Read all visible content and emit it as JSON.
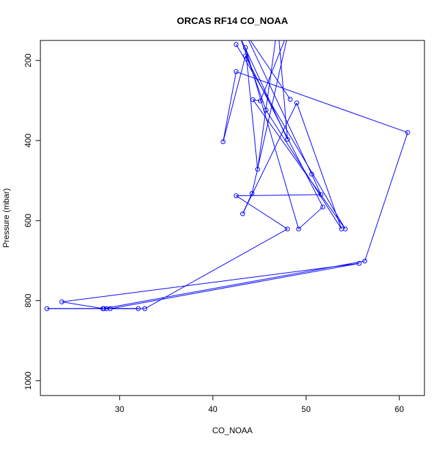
{
  "chart_data": {
    "type": "line",
    "title": "ORCAS RF14 CO_NOAA",
    "xlabel": "CO_NOAA",
    "ylabel": "Pressure (mbar)",
    "xlim": [
      21.5,
      62.7
    ],
    "ylim": [
      1037,
      150
    ],
    "y_reversed": true,
    "x_ticks": [
      30,
      40,
      50,
      60
    ],
    "y_ticks": [
      200,
      400,
      600,
      800,
      1000
    ],
    "grid": false,
    "legend": "none",
    "series": [
      {
        "marker": "open-circle",
        "color": "#0000FF",
        "x": [
          48.3,
          43.4,
          50.6,
          51.6,
          42.5,
          48.0,
          32.7,
          28.6,
          29.0,
          55.7,
          23.8,
          28.3,
          32.0,
          22.2,
          28.2,
          56.3,
          60.9,
          42.5,
          41.1,
          43.5,
          51.8,
          49.2,
          43.5,
          44.8,
          46.9,
          42.7,
          48.0,
          47.0,
          42.6,
          45.7,
          53.8,
          49.0,
          43.2,
          44.2,
          48.2,
          45.1,
          44.3,
          54.2,
          42.5
        ],
        "y": [
          297,
          128,
          484,
          535,
          538,
          621,
          820,
          820,
          820,
          707,
          803,
          820,
          820,
          820,
          820,
          701,
          380,
          228,
          403,
          189,
          566,
          621,
          168,
          472,
          120,
          130,
          397,
          120,
          120,
          324,
          621,
          306,
          583,
          532,
          120,
          301,
          298,
          621,
          160
        ]
      }
    ]
  }
}
